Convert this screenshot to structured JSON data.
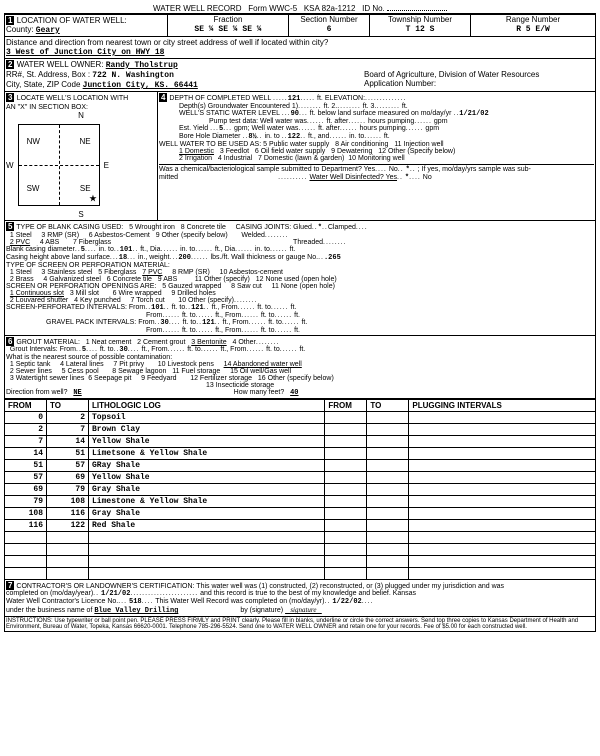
{
  "header": {
    "title": "WATER WELL RECORD",
    "form": "Form WWC-5",
    "ksa": "KSA 82a-1212",
    "idLabel": "ID No."
  },
  "location": {
    "sectionLabel": "LOCATION OF WATER WELL:",
    "county": "Geary",
    "fractionLabel": "Fraction",
    "fractions": "SE ¼ SE ¼ SE ¼",
    "sectionNumLabel": "Section Number",
    "sectionNum": "6",
    "townshipLabel": "Township Number",
    "township": "T 12 S",
    "rangeLabel": "Range Number",
    "range": "R 5 E/W",
    "distanceLabel": "Distance and direction from nearest town or city street address of well if located within city?",
    "distance": "3 West of Junction City on HWY 18"
  },
  "owner": {
    "label": "WATER WELL OWNER:",
    "name": "Randy Tholstrup",
    "addrLabel": "RR#, St. Address, Box :",
    "addr": "722 N. Washington",
    "cityLabel": "City, State, ZIP Code",
    "city": "Junction City, KS. 66441",
    "boardLabel": "Board of Agriculture, Division of Water Resources",
    "appLabel": "Application Number:"
  },
  "sec3": {
    "locateLabel": "LOCATE WELL'S LOCATION WITH",
    "xbox": "AN \"X\" IN SECTION BOX:",
    "n": "N",
    "s": "S",
    "e": "E",
    "w": "W",
    "nw": "NW",
    "ne": "NE",
    "sw": "SW",
    "se": "SE"
  },
  "sec4": {
    "depthLabel": "DEPTH OF COMPLETED WELL",
    "depth": "121",
    "elevLabel": "ft. ELEVATION:",
    "gwLabel": "Depth(s) Groundwater Encountered",
    "gw1": "1)",
    "gw2": "ft. 2.",
    "gw3": "ft. 3.",
    "gwft": "ft.",
    "staticLabel": "WELL'S STATIC WATER LEVEL",
    "static": "90",
    "staticText": "ft. below land surface measured on mo/day/yr",
    "staticDate": "1/21/02",
    "pumpLabel": "Pump test data: Well water was",
    "pumpAfter": "ft. after",
    "pumpHours": "hours pumping",
    "pumpGpm": "gpm",
    "estLabel": "Est. Yield",
    "est": "5",
    "estGpm": "gpm; Well water was",
    "boreLabel": "Bore Hole Diameter",
    "bore": "8½",
    "boreIn": "in. to",
    "boreDepth": "122",
    "boreFt": "ft., and",
    "boreIn2": "in. to",
    "boreFt2": "ft.",
    "useLabel": "WELL WATER TO BE USED AS:",
    "uses": [
      "1 Domestic",
      "2 Irrigation",
      "3 Feedlot",
      "4 Industrial",
      "5 Public water supply",
      "6 Oil field water supply",
      "7 Domestic (lawn & garden)",
      "8 Air conditioning",
      "9 Dewatering",
      "10 Monitoring well",
      "11 Injection well",
      "12 Other (Specify below)"
    ],
    "chemLabel": "Was a chemical/bacteriological sample submitted to Department? Yes",
    "chemNo": "No",
    "chemStar": "*",
    "chemIf": "; If yes, mo/day/yrs sample was sub-",
    "mitted": "mitted",
    "disinfect": "Water Well Disinfected? Yes",
    "disinfectStar": "*",
    "disinfectNo": "No"
  },
  "sec5": {
    "label": "TYPE OF BLANK CASING USED:",
    "items": [
      "1 Steel",
      "2 PVC",
      "3 RMP (SR)",
      "4 ABS",
      "5 Wrought iron",
      "6 Asbestos-Cement",
      "7 Fiberglass",
      "8 Concrete tile",
      "9 Other (specify below)"
    ],
    "jointsLabel": "CASING JOINTS: Glued",
    "star": "*",
    "clamped": "Clamped",
    "welded": "Welded",
    "threaded": "Threaded",
    "diaLabel": "Blank casing diameter",
    "dia": "5",
    "diaIn": "in. to",
    "diaTo": "101",
    "diaFt": "ft., Dia",
    "diaIn2": "in. to",
    "diaFt2": "ft., Dia",
    "diaIn3": "in. to",
    "diaFt3": "ft.",
    "heightLabel": "Casing height above land surface",
    "height": "18",
    "heightIn": "in., weight",
    "weight": "200",
    "lbsft": "lbs./ft. Wall thickness or gauge No.",
    "gauge": ".265",
    "screenLabel": "TYPE OF SCREEN OR PERFORATION MATERIAL:",
    "screenItems": [
      "1 Steel",
      "2 Brass",
      "3 Stainless steel",
      "4 Galvanized steel",
      "5 Fiberglass",
      "6 Concrete tile",
      "7 PVC",
      "8 RMP (SR)",
      "9 ABS",
      "10 Asbestos-cement",
      "11 Other (specify)",
      "12 None used (open hole)"
    ],
    "openLabel": "SCREEN OR PERFORATION OPENINGS ARE:",
    "openItems": [
      "1 Continuous slot",
      "2 Louvared shutter",
      "3 Mill slot",
      "4 Key punched",
      "5 Gauzed wrapped",
      "6 Wire wrapped",
      "7 Torch cut",
      "8 Saw cut",
      "9 Drilled holes",
      "10 Other (specify)",
      "11 None (open hole)"
    ],
    "perfLabel": "SCREEN-PERFORATED INTERVALS: From",
    "perfFrom": "101",
    "perfFt": "ft. to",
    "perfTo": "121",
    "perfFt2": "ft., From",
    "perfFt3": "ft. to",
    "perfFt4": "ft.",
    "perfFrom2": "From",
    "perfFt5": "ft. to",
    "perfFt6": "ft., From",
    "perfFt7": "ft. to",
    "perfFt8": "ft.",
    "gravelLabel": "GRAVEL PACK INTERVALS: From",
    "gravelFrom": "30",
    "gravelTo": "121"
  },
  "sec6": {
    "label": "GROUT MATERIAL:",
    "items": [
      "1 Neat cement",
      "2 Cement grout",
      "3 Bentonite",
      "4 Other"
    ],
    "intLabel": "Grout Intervals: From",
    "intFrom": "5",
    "intFt": "ft. to",
    "intTo": "30",
    "intFt2": "ft., From",
    "intFt3": "ft. to",
    "intFt4": "ft., From",
    "intFt5": "ft. to",
    "intFt6": "ft.",
    "contamLabel": "What is the nearest source of possible contamination:",
    "contamItems": [
      "1 Septic tank",
      "2 Sewer lines",
      "3 Watertight sewer lines",
      "4 Lateral lines",
      "5 Cess pool",
      "6 Seepage pit",
      "7 Pit privy",
      "8 Sewage lagoon",
      "9 Feedyard",
      "10 Livestock pens",
      "11 Fuel storage",
      "12 Fertilizer storage",
      "13 Insecticide storage",
      "14 Abandoned water well",
      "15 Oil well/Gas well",
      "16 Other (specify below)"
    ],
    "dirLabel": "Direction from well?",
    "dir": "NE",
    "howLabel": "How many feet?",
    "how": "40"
  },
  "log": {
    "headers": [
      "FROM",
      "TO",
      "LITHOLOGIC LOG",
      "FROM",
      "TO",
      "PLUGGING INTERVALS"
    ],
    "rows": [
      [
        "0",
        "2",
        "Topsoil",
        "",
        "",
        ""
      ],
      [
        "2",
        "7",
        "Brown Clay",
        "",
        "",
        ""
      ],
      [
        "7",
        "14",
        "Yellow Shale",
        "",
        "",
        ""
      ],
      [
        "14",
        "51",
        "Limetsone & Yellow Shale",
        "",
        "",
        ""
      ],
      [
        "51",
        "57",
        "GRay Shale",
        "",
        "",
        ""
      ],
      [
        "57",
        "69",
        "Yellow Shale",
        "",
        "",
        ""
      ],
      [
        "69",
        "79",
        "Gray Shale",
        "",
        "",
        ""
      ],
      [
        "79",
        "108",
        "Limestone & Yellow Shale",
        "",
        "",
        ""
      ],
      [
        "108",
        "116",
        "Gray Shale",
        "",
        "",
        ""
      ],
      [
        "116",
        "122",
        "Red Shale",
        "",
        "",
        ""
      ],
      [
        "",
        "",
        "",
        "",
        "",
        ""
      ],
      [
        "",
        "",
        "",
        "",
        "",
        ""
      ],
      [
        "",
        "",
        "",
        "",
        "",
        ""
      ],
      [
        "",
        "",
        "",
        "",
        "",
        ""
      ]
    ]
  },
  "sec7": {
    "label": "CONTRACTOR'S OR LANDOWNER'S CERTIFICATION: This water well was (1) constructed, (2) reconstructed, or (3) plugged under my jurisdiction and was",
    "completed": "completed on (mo/day/year)",
    "date1": "1/21/02",
    "record": "and this record is true to the best of my knowledge and belief. Kansas",
    "licence": "Water Well Contractor's Licence No.",
    "licNo": "518",
    "recComp": "This Water Well Record was completed on (mo/day/yr)",
    "date2": "1/22/02",
    "business": "under the business name of",
    "bizName": "Blue Valley Drilling",
    "sig": "by (signature)"
  },
  "footer": "INSTRUCTIONS: Use typewriter or ball point pen. PLEASE PRESS FIRMLY and PRINT clearly. Please fill in blanks, underline or circle the correct answers. Send top three copies to Kansas Department of Health and Environment, Bureau of Water, Topeka, Kansas 66620-0001. Telephone 785-296-5524. Send one to WATER WELL OWNER and retain one for your records. Fee of $5.00 for each constructed well."
}
